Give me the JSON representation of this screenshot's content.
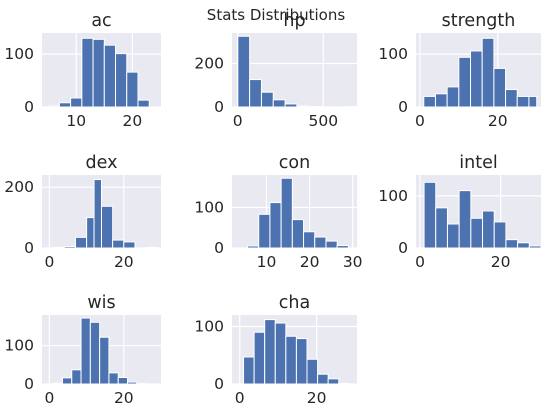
{
  "figure": {
    "suptitle": "Stats Distributions",
    "panel_bg": "#e9e9f1",
    "grid_color": "#ffffff",
    "bar_color": "#4c72b0",
    "text_color": "#262626"
  },
  "chart_data": [
    {
      "type": "bar",
      "title": "ac",
      "grid": true,
      "xlim": [
        3.9,
        25.1
      ],
      "ylim": [
        0,
        140
      ],
      "xticks": [
        10,
        20
      ],
      "yticks": [
        0,
        100
      ],
      "bin_edges": [
        5,
        7,
        9,
        11,
        13,
        15,
        17,
        19,
        21,
        23,
        25
      ],
      "values": [
        2,
        8,
        17,
        130,
        128,
        117,
        101,
        66,
        13,
        0
      ]
    },
    {
      "type": "bar",
      "title": "hp",
      "grid": true,
      "xlim": [
        -33,
        697
      ],
      "ylim": [
        0,
        340
      ],
      "xticks": [
        0,
        500
      ],
      "yticks": [
        0,
        200
      ],
      "bin_edges": [
        1,
        70,
        139,
        208,
        277,
        346,
        415,
        484,
        553,
        622,
        691
      ],
      "values": [
        325,
        126,
        68,
        33,
        14,
        4,
        2,
        1,
        0,
        1
      ]
    },
    {
      "type": "bar",
      "title": "strength",
      "grid": true,
      "xlim": [
        -1,
        31.1
      ],
      "ylim": [
        0,
        140
      ],
      "xticks": [
        0,
        20
      ],
      "yticks": [
        0,
        100
      ],
      "bin_edges": [
        1,
        4,
        7,
        10,
        13,
        16,
        19,
        22,
        25,
        28,
        30
      ],
      "values": [
        20,
        25,
        38,
        94,
        106,
        130,
        73,
        33,
        20,
        20
      ]
    },
    {
      "type": "bar",
      "title": "dex",
      "grid": true,
      "xlim": [
        -2,
        30
      ],
      "ylim": [
        0,
        240
      ],
      "xticks": [
        0,
        20
      ],
      "yticks": [
        0,
        200
      ],
      "bin_edges": [
        1,
        4,
        7,
        10,
        12,
        14,
        17,
        20,
        23,
        26,
        29
      ],
      "values": [
        2,
        5,
        35,
        100,
        225,
        137,
        26,
        20,
        0,
        2
      ]
    },
    {
      "type": "bar",
      "title": "con",
      "grid": true,
      "xlim": [
        2,
        31
      ],
      "ylim": [
        0,
        180
      ],
      "xticks": [
        10,
        20,
        30
      ],
      "yticks": [
        0,
        100
      ],
      "bin_edges": [
        3,
        5.6,
        8.2,
        10.8,
        13.4,
        16,
        18.6,
        21.2,
        23.8,
        26.4,
        29
      ],
      "values": [
        0,
        5,
        83,
        112,
        172,
        70,
        40,
        27,
        17,
        6
      ]
    },
    {
      "type": "bar",
      "title": "intel",
      "grid": true,
      "xlim": [
        -1,
        30
      ],
      "ylim": [
        0,
        140
      ],
      "xticks": [
        0,
        20
      ],
      "yticks": [
        0,
        100
      ],
      "bin_edges": [
        1,
        3.9,
        6.8,
        9.7,
        12.6,
        15.5,
        18.4,
        21.3,
        24.2,
        27.1,
        30
      ],
      "values": [
        126,
        77,
        46,
        110,
        57,
        71,
        50,
        16,
        10,
        4
      ]
    },
    {
      "type": "bar",
      "title": "wis",
      "grid": true,
      "xlim": [
        -2,
        30
      ],
      "ylim": [
        0,
        180
      ],
      "xticks": [
        0,
        20
      ],
      "yticks": [
        0,
        100
      ],
      "bin_edges": [
        1,
        3.5,
        6,
        8.5,
        11,
        13.5,
        16,
        18.5,
        21,
        23.5,
        26
      ],
      "values": [
        2,
        16,
        37,
        172,
        161,
        122,
        29,
        17,
        5,
        1
      ]
    },
    {
      "type": "bar",
      "title": "cha",
      "grid": true,
      "xlim": [
        -2,
        30.5
      ],
      "ylim": [
        0,
        120
      ],
      "xticks": [
        0,
        20
      ],
      "yticks": [
        0,
        100
      ],
      "bin_edges": [
        1,
        3.75,
        6.5,
        9.25,
        12,
        14.75,
        17.5,
        20.25,
        23,
        25.75,
        28.5
      ],
      "values": [
        47,
        90,
        112,
        106,
        83,
        79,
        43,
        17,
        9,
        1
      ]
    }
  ]
}
